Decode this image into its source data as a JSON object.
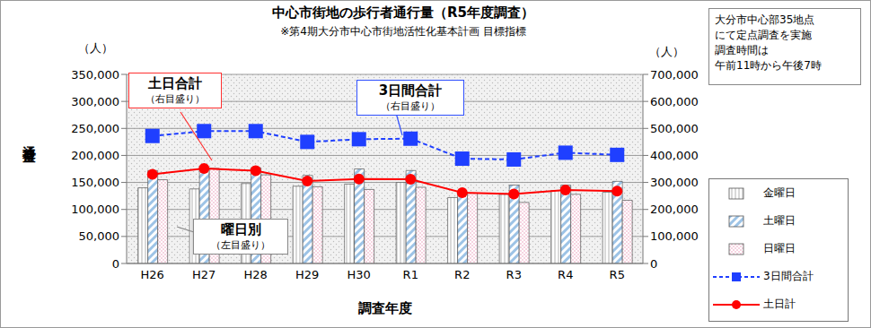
{
  "chart_data": {
    "type": "bar",
    "title": "中心市街地の歩行者通行量（R5年度調査）",
    "subtitle": "※第4期大分市中心市街地活性化基本計画 目標指標",
    "x_label": "調査年度",
    "y_label": "通行量",
    "y_unit_label": "（人）",
    "y2_unit_label": "（人）",
    "categories": [
      "H26",
      "H27",
      "H28",
      "H29",
      "H30",
      "R1",
      "R2",
      "R3",
      "R4",
      "R5"
    ],
    "series": [
      {
        "name": "金曜日",
        "type": "bar",
        "color": "#d9d9d9",
        "values": [
          140000,
          138000,
          148000,
          143000,
          147000,
          150000,
          122000,
          128000,
          135000,
          132000
        ]
      },
      {
        "name": "土曜日",
        "type": "bar",
        "color": "#9dc3e6",
        "values": [
          172000,
          176000,
          177000,
          163000,
          175000,
          172000,
          132000,
          145000,
          145000,
          152000
        ]
      },
      {
        "name": "日曜日",
        "type": "bar",
        "color": "#f4c6d8",
        "values": [
          155000,
          176000,
          164000,
          142000,
          137000,
          141000,
          130000,
          113000,
          128000,
          117000
        ]
      },
      {
        "name": "3日間合計",
        "type": "line",
        "axis": "y2",
        "color": "#1f3fff",
        "marker": "square",
        "line_style": "dashed",
        "values": [
          472000,
          490000,
          490000,
          450000,
          460000,
          462000,
          388000,
          385000,
          410000,
          402000
        ]
      },
      {
        "name": "土日計",
        "type": "line",
        "axis": "y2",
        "color": "#ff0000",
        "marker": "circle",
        "line_style": "solid",
        "values": [
          330000,
          352000,
          343000,
          305000,
          313000,
          312000,
          262000,
          257000,
          272000,
          268000
        ]
      }
    ],
    "ylim": [
      0,
      350000
    ],
    "yticks": [
      0,
      {
        "value": 50000,
        "label": "50,000"
      },
      {
        "value": 100000,
        "label": "100,000"
      },
      {
        "value": 150000,
        "label": "150,000"
      },
      {
        "value": 200000,
        "label": "200,000"
      },
      {
        "value": 250000,
        "label": "250,000"
      },
      {
        "value": 300000,
        "label": "300,000"
      },
      {
        "value": 350000,
        "label": "350,000"
      }
    ],
    "y2lim": [
      0,
      700000
    ],
    "y2ticks": [
      0,
      {
        "value": 100000,
        "label": "100,000"
      },
      {
        "value": 200000,
        "label": "200,000"
      },
      {
        "value": 300000,
        "label": "300,000"
      },
      {
        "value": 400000,
        "label": "400,000"
      },
      {
        "value": 500000,
        "label": "500,000"
      },
      {
        "value": 600000,
        "label": "600,000"
      },
      {
        "value": 700000,
        "label": "700,000"
      }
    ],
    "grid": true,
    "legend": "right",
    "annotations": [
      {
        "lines": [
          "土日合計",
          "（右目盛り）"
        ]
      },
      {
        "lines": [
          "3日間合計",
          "（右目盛り）"
        ]
      },
      {
        "lines": [
          "曜日別",
          "（左目盛り）"
        ]
      }
    ],
    "note": [
      "大分市中心部35地点",
      "にて定点調査を実施",
      "調査時間は",
      "午前11時から午後7時"
    ]
  }
}
